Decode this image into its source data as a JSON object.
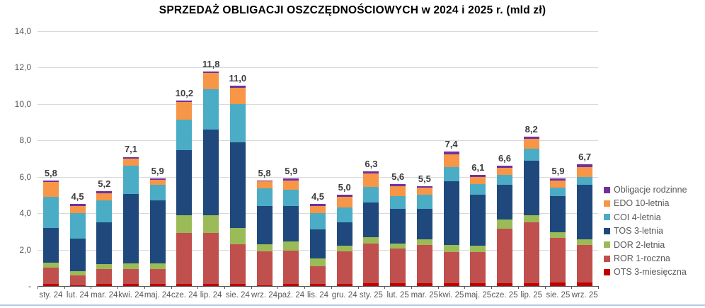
{
  "title": "SPRZEDAŻ OBLIGACJI OSZCZĘDNOŚCIOWYCH w 2024 i 2025 r. (mld zł)",
  "chart_data": {
    "type": "bar",
    "stacked": true,
    "title": "SPRZEDAŻ OBLIGACJI OSZCZĘDNOŚCIOWYCH w 2024 i 2025 r. (mld zł)",
    "xlabel": "",
    "ylabel": "",
    "ylim": [
      0,
      14
    ],
    "grid": true,
    "legend_position": "right",
    "categories": [
      "sty. 24",
      "lut. 24",
      "mar. 24",
      "kwi. 24",
      "maj. 24",
      "cze. 24",
      "lip. 24",
      "sie. 24",
      "wrz. 24",
      "paź. 24",
      "lis. 24",
      "gru. 24",
      "sty. 25",
      "lut. 25",
      "mar. 25",
      "kwi. 25",
      "maj. 25",
      "cze. 25",
      "lip. 25",
      "sie. 25",
      "wrz. 25"
    ],
    "yticks": [
      {
        "value": 0,
        "label": "-"
      },
      {
        "value": 2,
        "label": "2,0"
      },
      {
        "value": 4,
        "label": "4,0"
      },
      {
        "value": 6,
        "label": "6,0"
      },
      {
        "value": 8,
        "label": "8,0"
      },
      {
        "value": 10,
        "label": "10,0"
      },
      {
        "value": 12,
        "label": "12,0"
      },
      {
        "value": 14,
        "label": "14,0"
      }
    ],
    "series": [
      {
        "name": "OTS 3-miesięczna",
        "color": "#c00000",
        "values": [
          0.1,
          0.05,
          0.1,
          0.1,
          0.1,
          0.1,
          0.1,
          0.1,
          0.05,
          0.1,
          0.1,
          0.1,
          0.15,
          0.15,
          0.15,
          0.15,
          0.15,
          0.15,
          0.15,
          0.2,
          0.2
        ]
      },
      {
        "name": "ROR 1-roczna",
        "color": "#c0504d",
        "values": [
          0.9,
          0.55,
          0.85,
          0.85,
          0.85,
          2.8,
          2.8,
          2.2,
          1.85,
          1.85,
          1.0,
          1.8,
          2.2,
          1.9,
          2.1,
          1.7,
          1.7,
          3.0,
          3.35,
          2.45,
          2.05
        ]
      },
      {
        "name": "DOR 2-letnia",
        "color": "#9bbb59",
        "values": [
          0.3,
          0.2,
          0.25,
          0.3,
          0.3,
          1.0,
          1.0,
          0.9,
          0.4,
          0.5,
          0.4,
          0.3,
          0.35,
          0.3,
          0.3,
          0.4,
          0.35,
          0.5,
          0.4,
          0.3,
          0.3
        ]
      },
      {
        "name": "TOS 3-letnia",
        "color": "#1f497d",
        "values": [
          1.9,
          1.8,
          2.3,
          3.8,
          3.45,
          3.55,
          4.7,
          4.7,
          2.1,
          1.95,
          1.6,
          1.3,
          1.9,
          1.9,
          1.7,
          3.5,
          2.8,
          1.9,
          3.0,
          2.0,
          3.0
        ]
      },
      {
        "name": "COI 4-letnia",
        "color": "#4bacc6",
        "values": [
          1.7,
          1.4,
          1.2,
          1.55,
          0.85,
          1.7,
          2.2,
          2.1,
          0.95,
          0.9,
          0.9,
          0.8,
          0.85,
          0.7,
          0.75,
          0.8,
          0.6,
          0.55,
          0.65,
          0.45,
          0.45
        ]
      },
      {
        "name": "EDO 10-letnia",
        "color": "#f79646",
        "values": [
          0.8,
          0.4,
          0.4,
          0.4,
          0.3,
          0.95,
          0.9,
          0.9,
          0.4,
          0.5,
          0.4,
          0.6,
          0.75,
          0.55,
          0.4,
          0.7,
          0.4,
          0.4,
          0.55,
          0.4,
          0.55
        ]
      },
      {
        "name": "Obligacje rodzinne",
        "color": "#7030a0",
        "values": [
          0.1,
          0.1,
          0.1,
          0.1,
          0.05,
          0.1,
          0.1,
          0.1,
          0.05,
          0.1,
          0.1,
          0.1,
          0.1,
          0.1,
          0.1,
          0.15,
          0.1,
          0.1,
          0.1,
          0.1,
          0.15
        ]
      }
    ],
    "totals": [
      5.8,
      4.5,
      5.2,
      7.1,
      5.9,
      10.2,
      11.8,
      11.0,
      5.8,
      5.9,
      4.5,
      5.0,
      6.3,
      5.6,
      5.5,
      7.4,
      6.1,
      6.6,
      8.2,
      5.9,
      6.7
    ],
    "total_labels": [
      "5,8",
      "4,5",
      "5,2",
      "7,1",
      "5,9",
      "10,2",
      "11,8",
      "11,0",
      "5,8",
      "5,9",
      "4,5",
      "5,0",
      "6,3",
      "5,6",
      "5,5",
      "7,4",
      "6,1",
      "6,6",
      "8,2",
      "5,9",
      "6,7"
    ],
    "legend_order": [
      "Obligacje rodzinne",
      "EDO 10-letnia",
      "COI 4-letnia",
      "TOS 3-letnia",
      "DOR 2-letnia",
      "ROR 1-roczna",
      "OTS 3-miesięczna"
    ]
  },
  "style": {
    "axis_color": "#595959",
    "gridline_color": "#d9d9d9",
    "label_color": "#3d3d3d",
    "bottom_border_color": "#b3c9e6"
  }
}
